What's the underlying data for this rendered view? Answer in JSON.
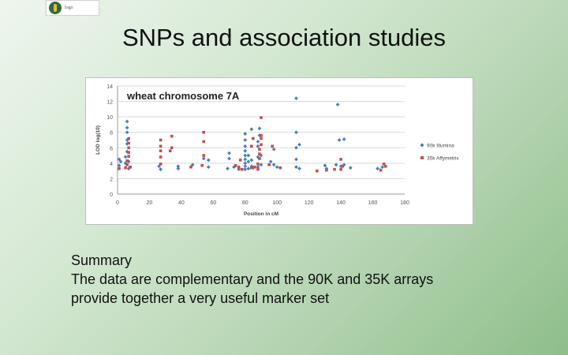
{
  "slide": {
    "title": "SNPs and association studies",
    "logo_alt": "logo",
    "summary": {
      "heading": "Summary",
      "line1": "The data are complementary and the 90K and 35K arrays",
      "line2": "provide together a very useful marker set"
    }
  },
  "colors": {
    "illumina": "#4a7ebb",
    "affymetrix": "#c0504d",
    "gridline": "#d9d9d9"
  },
  "chart_data": {
    "type": "scatter",
    "title": "wheat chromosome 7A",
    "xlabel": "Position in cM",
    "ylabel": "LOD log(10)",
    "xlim": [
      0,
      180
    ],
    "ylim": [
      0,
      14
    ],
    "xticks": [
      "0",
      "20",
      "40",
      "60",
      "80",
      "100",
      "120",
      "140",
      "160",
      "180"
    ],
    "yticks": [
      "0",
      "2",
      "4",
      "6",
      "8",
      "10",
      "12",
      "14"
    ],
    "grid": true,
    "legend_position": "right",
    "series": [
      {
        "name": "90k Illumina",
        "points": [
          [
            1,
            3.7
          ],
          [
            1,
            4.5
          ],
          [
            2,
            4.2
          ],
          [
            5,
            4.0
          ],
          [
            5,
            4.8
          ],
          [
            6,
            5.5
          ],
          [
            6,
            6.5
          ],
          [
            6,
            7.0
          ],
          [
            6,
            8.0
          ],
          [
            6,
            8.6
          ],
          [
            6,
            9.4
          ],
          [
            7,
            3.3
          ],
          [
            7,
            4.2
          ],
          [
            26,
            3.6
          ],
          [
            27,
            3.2
          ],
          [
            38,
            3.6
          ],
          [
            38,
            3.3
          ],
          [
            47,
            3.8
          ],
          [
            54,
            4.6
          ],
          [
            57,
            4.4
          ],
          [
            57,
            3.5
          ],
          [
            69,
            3.3
          ],
          [
            70,
            5.3
          ],
          [
            70,
            4.6
          ],
          [
            73,
            3.5
          ],
          [
            76,
            3.2
          ],
          [
            80,
            3.2
          ],
          [
            80,
            3.6
          ],
          [
            80,
            4.0
          ],
          [
            80,
            4.5
          ],
          [
            80,
            5.0
          ],
          [
            80,
            5.6
          ],
          [
            80,
            6.2
          ],
          [
            80,
            7.0
          ],
          [
            80,
            7.8
          ],
          [
            82,
            3.3
          ],
          [
            82,
            4.2
          ],
          [
            82,
            5.0
          ],
          [
            84,
            3.6
          ],
          [
            84,
            4.4
          ],
          [
            84,
            8.4
          ],
          [
            85,
            3.4
          ],
          [
            88,
            3.5
          ],
          [
            88,
            4.8
          ],
          [
            88,
            6.2
          ],
          [
            88,
            6.8
          ],
          [
            89,
            7.6
          ],
          [
            89,
            8.5
          ],
          [
            90,
            3.8
          ],
          [
            90,
            5.0
          ],
          [
            96,
            4.2
          ],
          [
            98,
            3.8
          ],
          [
            98,
            5.8
          ],
          [
            100,
            3.5
          ],
          [
            112,
            3.5
          ],
          [
            112,
            4.5
          ],
          [
            112,
            6.0
          ],
          [
            112,
            8.0
          ],
          [
            112,
            12.4
          ],
          [
            114,
            3.3
          ],
          [
            114,
            6.4
          ],
          [
            130,
            3.7
          ],
          [
            131,
            3.3
          ],
          [
            137,
            3.8
          ],
          [
            138,
            11.6
          ],
          [
            139,
            7.0
          ],
          [
            140,
            3.6
          ],
          [
            142,
            3.8
          ],
          [
            142,
            7.1
          ],
          [
            146,
            3.4
          ],
          [
            163,
            3.3
          ],
          [
            166,
            3.5
          ]
        ]
      },
      {
        "name": "35k Affymetrix",
        "points": [
          [
            1,
            3.3
          ],
          [
            5,
            3.4
          ],
          [
            6,
            3.8
          ],
          [
            6,
            4.3
          ],
          [
            7,
            4.9
          ],
          [
            7,
            5.4
          ],
          [
            7,
            6.0
          ],
          [
            7,
            6.6
          ],
          [
            7,
            7.2
          ],
          [
            8,
            3.5
          ],
          [
            27,
            3.9
          ],
          [
            27,
            4.8
          ],
          [
            27,
            5.6
          ],
          [
            27,
            6.2
          ],
          [
            27,
            7.0
          ],
          [
            33,
            5.6
          ],
          [
            34,
            6.0
          ],
          [
            34,
            7.5
          ],
          [
            46,
            3.5
          ],
          [
            53,
            3.7
          ],
          [
            54,
            5.0
          ],
          [
            54,
            6.8
          ],
          [
            54,
            8.0
          ],
          [
            74,
            3.7
          ],
          [
            76,
            3.5
          ],
          [
            77,
            4.4
          ],
          [
            78,
            3.2
          ],
          [
            84,
            3.4
          ],
          [
            84,
            6.2
          ],
          [
            85,
            7.2
          ],
          [
            86,
            3.5
          ],
          [
            88,
            3.2
          ],
          [
            88,
            3.9
          ],
          [
            89,
            4.6
          ],
          [
            89,
            5.2
          ],
          [
            89,
            5.8
          ],
          [
            90,
            6.4
          ],
          [
            90,
            7.2
          ],
          [
            90,
            7.6
          ],
          [
            90,
            9.9
          ],
          [
            95,
            3.8
          ],
          [
            97,
            6.2
          ],
          [
            102,
            3.4
          ],
          [
            125,
            3.0
          ],
          [
            131,
            3.1
          ],
          [
            136,
            3.2
          ],
          [
            140,
            3.2
          ],
          [
            140,
            4.5
          ],
          [
            141,
            3.6
          ],
          [
            165,
            3.1
          ],
          [
            167,
            3.9
          ],
          [
            168,
            3.6
          ]
        ]
      }
    ]
  }
}
